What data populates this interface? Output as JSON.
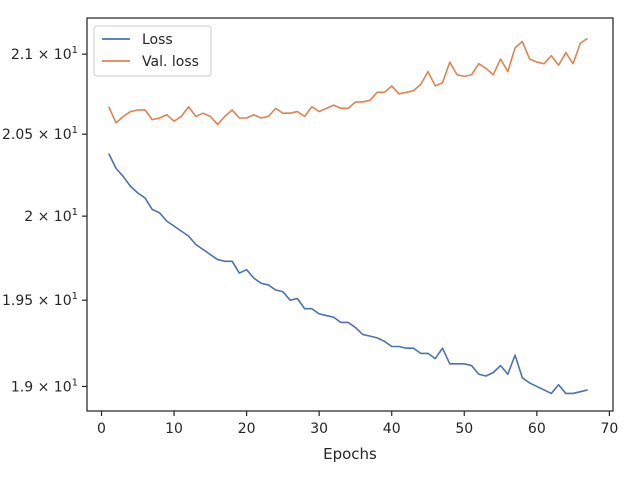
{
  "chart_data": {
    "type": "line",
    "xlabel": "Epochs",
    "ylabel": "",
    "title": "",
    "xlim": [
      -2,
      70.5
    ],
    "ylim": [
      18.86,
      21.23
    ],
    "y_scale": "log",
    "grid": false,
    "legend_position": "top-left",
    "x_ticks": [
      0,
      10,
      20,
      30,
      40,
      50,
      60,
      70
    ],
    "x_tick_labels": [
      "0",
      "10",
      "20",
      "30",
      "40",
      "50",
      "60",
      "70"
    ],
    "y_ticks": [
      19.0,
      19.5,
      20.0,
      20.5,
      21.0
    ],
    "y_tick_labels": [
      {
        "base": "1.9",
        "sep": "×",
        "pow": "10",
        "exp": "1"
      },
      {
        "base": "1.95",
        "sep": "×",
        "pow": "10",
        "exp": "1"
      },
      {
        "base": "2",
        "sep": "×",
        "pow": "10",
        "exp": "1"
      },
      {
        "base": "2.05",
        "sep": "×",
        "pow": "10",
        "exp": "1"
      },
      {
        "base": "2.1",
        "sep": "×",
        "pow": "10",
        "exp": "1"
      }
    ],
    "x": [
      1,
      2,
      3,
      4,
      5,
      6,
      7,
      8,
      9,
      10,
      11,
      12,
      13,
      14,
      15,
      16,
      17,
      18,
      19,
      20,
      21,
      22,
      23,
      24,
      25,
      26,
      27,
      28,
      29,
      30,
      31,
      32,
      33,
      34,
      35,
      36,
      37,
      38,
      39,
      40,
      41,
      42,
      43,
      44,
      45,
      46,
      47,
      48,
      49,
      50,
      51,
      52,
      53,
      54,
      55,
      56,
      57,
      58,
      59,
      60,
      61,
      62,
      63,
      64,
      65,
      66,
      67
    ],
    "series": [
      {
        "name": "Loss",
        "color": "#4c72b0",
        "values": [
          20.38,
          20.29,
          20.24,
          20.18,
          20.14,
          20.11,
          20.04,
          20.02,
          19.97,
          19.94,
          19.91,
          19.88,
          19.83,
          19.8,
          19.77,
          19.74,
          19.73,
          19.73,
          19.66,
          19.68,
          19.63,
          19.6,
          19.59,
          19.56,
          19.55,
          19.5,
          19.51,
          19.45,
          19.45,
          19.42,
          19.41,
          19.4,
          19.37,
          19.37,
          19.34,
          19.3,
          19.29,
          19.28,
          19.26,
          19.23,
          19.23,
          19.22,
          19.22,
          19.19,
          19.19,
          19.16,
          19.22,
          19.13,
          19.13,
          19.13,
          19.12,
          19.07,
          19.06,
          19.08,
          19.12,
          19.07,
          19.18,
          19.05,
          19.02,
          19.0,
          18.98,
          18.96,
          19.01,
          18.96,
          18.96,
          18.97,
          18.98
        ]
      },
      {
        "name": "Val. loss",
        "color": "#dd8452",
        "values": [
          20.67,
          20.57,
          20.61,
          20.64,
          20.65,
          20.65,
          20.59,
          20.6,
          20.62,
          20.58,
          20.61,
          20.67,
          20.61,
          20.63,
          20.61,
          20.56,
          20.61,
          20.65,
          20.6,
          20.6,
          20.62,
          20.6,
          20.61,
          20.66,
          20.63,
          20.63,
          20.64,
          20.61,
          20.67,
          20.64,
          20.66,
          20.68,
          20.66,
          20.66,
          20.7,
          20.7,
          20.71,
          20.76,
          20.76,
          20.8,
          20.75,
          20.76,
          20.77,
          20.81,
          20.89,
          20.8,
          20.82,
          20.95,
          20.87,
          20.86,
          20.87,
          20.94,
          20.91,
          20.87,
          20.97,
          20.89,
          21.04,
          21.08,
          20.97,
          20.95,
          20.94,
          20.99,
          20.93,
          21.01,
          20.94,
          21.07,
          21.1
        ]
      }
    ]
  }
}
